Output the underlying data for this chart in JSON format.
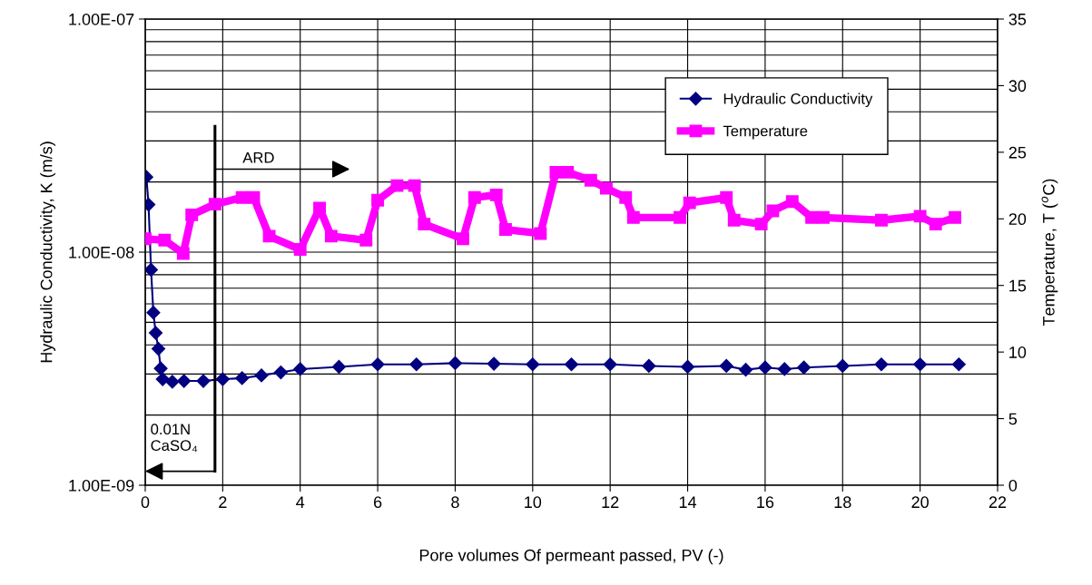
{
  "chart_data": {
    "type": "line",
    "xlabel": "Pore volumes Of permeant passed, PV (-)",
    "ylabel": "Hydraulic Conductivity, K (m/s)",
    "y2label": "Temperature, T ($^{o}$C)",
    "xlim": [
      0,
      22
    ],
    "xticks": [
      0,
      2,
      4,
      6,
      8,
      10,
      12,
      14,
      16,
      18,
      20,
      22
    ],
    "ylim": [
      1e-09,
      1e-07
    ],
    "log": "y",
    "yticks": [
      {
        "value": 1e-09,
        "label": "1.00E-09"
      },
      {
        "value": 1e-08,
        "label": "1.00E-08"
      },
      {
        "value": 1e-07,
        "label": "1.00E-07"
      }
    ],
    "y2lim": [
      0,
      35
    ],
    "y2ticks": [
      0,
      5,
      10,
      15,
      20,
      25,
      30,
      35
    ],
    "grid": true,
    "legend": "top right",
    "series": [
      {
        "name": "Hydraulic Conductivity",
        "color": "#000080",
        "marker": "diamond",
        "x": [
          0.03,
          0.085,
          0.15,
          0.21,
          0.27,
          0.34,
          0.4,
          0.45,
          0.7,
          1.0,
          1.5,
          2.0,
          2.5,
          3.0,
          3.5,
          4.0,
          5.0,
          6.0,
          7.0,
          8.0,
          9.0,
          10.0,
          11.0,
          12.0,
          13.0,
          14.0,
          15.0,
          15.5,
          16.0,
          16.5,
          17.0,
          18.0,
          19.0,
          20.0,
          21.0
        ],
        "values": [
          2.1e-08,
          1.6e-08,
          8.4e-09,
          5.5e-09,
          4.5e-09,
          3.85e-09,
          3.17e-09,
          2.85e-09,
          2.78e-09,
          2.8e-09,
          2.8e-09,
          2.85e-09,
          2.88e-09,
          2.96e-09,
          3.05e-09,
          3.15e-09,
          3.22e-09,
          3.3e-09,
          3.3e-09,
          3.34e-09,
          3.32e-09,
          3.3e-09,
          3.3e-09,
          3.3e-09,
          3.25e-09,
          3.22e-09,
          3.25e-09,
          3.13e-09,
          3.2e-09,
          3.15e-09,
          3.2e-09,
          3.25e-09,
          3.3e-09,
          3.3e-09,
          3.3e-09
        ]
      },
      {
        "name": "Temperature",
        "color": "#ff00ff",
        "marker": "square",
        "axis": "y2",
        "x": [
          0.0,
          0.5,
          0.98,
          1.2,
          1.8,
          2.5,
          2.8,
          3.2,
          4.0,
          4.5,
          4.8,
          5.7,
          6.0,
          6.5,
          6.95,
          7.2,
          8.2,
          8.5,
          9.06,
          9.3,
          10.2,
          10.6,
          10.9,
          11.5,
          11.9,
          12.4,
          12.6,
          13.8,
          14.05,
          15.0,
          15.2,
          15.9,
          16.2,
          16.7,
          17.2,
          17.5,
          19.0,
          20.0,
          20.4,
          20.9
        ],
        "values": [
          18.5,
          18.4,
          17.4,
          20.3,
          21.1,
          21.6,
          21.6,
          18.7,
          17.7,
          20.8,
          18.7,
          18.4,
          21.4,
          22.5,
          22.5,
          19.6,
          18.5,
          21.6,
          21.8,
          19.2,
          18.9,
          23.5,
          23.5,
          22.9,
          22.3,
          21.6,
          20.1,
          20.1,
          21.2,
          21.6,
          19.9,
          19.6,
          20.6,
          21.3,
          20.1,
          20.1,
          19.9,
          20.2,
          19.6,
          20.1
        ]
      }
    ],
    "ref_lines": [
      {
        "axis": "x",
        "value": 1.8,
        "color": "#000000"
      }
    ],
    "annotations": [
      "ARD",
      "0.01N\nCaSO₄"
    ]
  }
}
